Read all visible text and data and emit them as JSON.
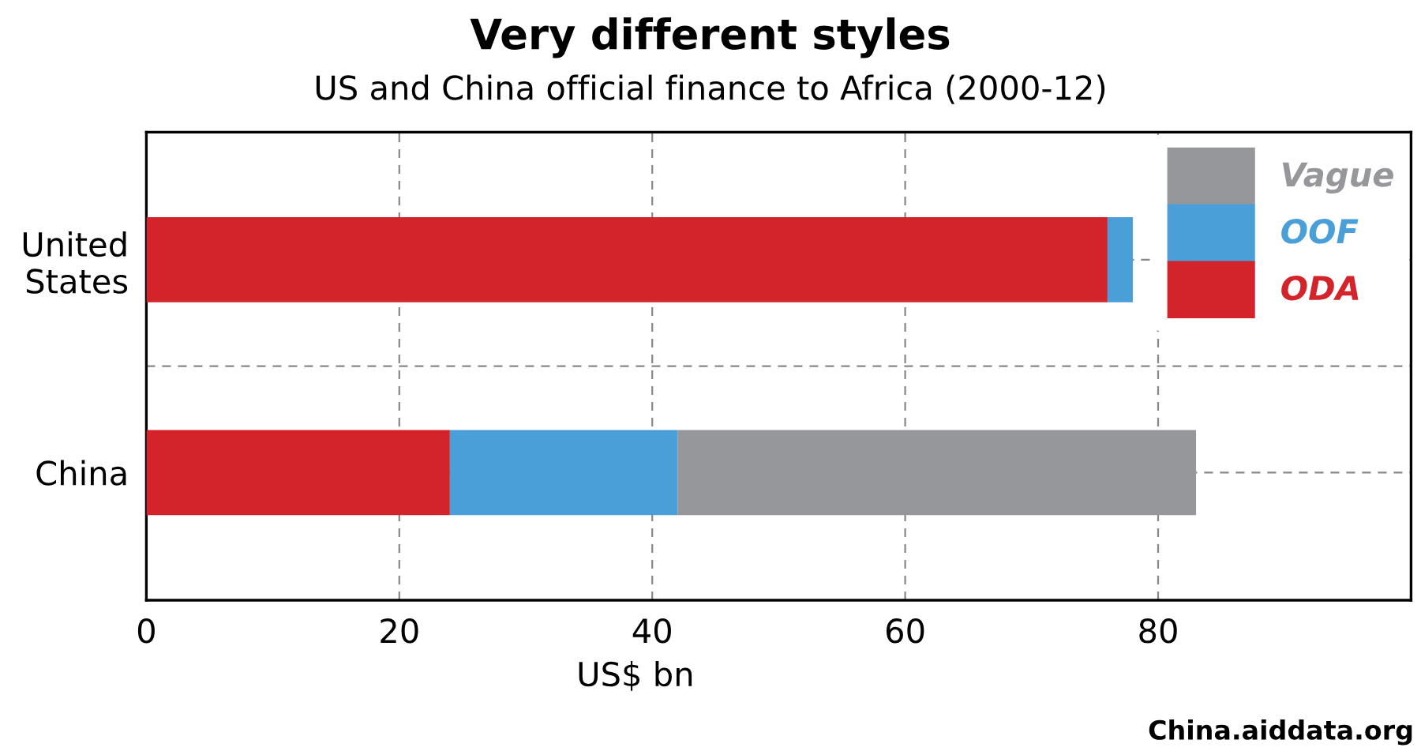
{
  "chart_data": {
    "type": "bar",
    "orientation": "horizontal",
    "stacked": true,
    "title": "Very different styles",
    "subtitle": "US and China official finance to Africa (2000-12)",
    "xlabel": "US$ bn",
    "categories": [
      "United\nStates",
      "China"
    ],
    "series": [
      {
        "name": "ODA",
        "color": "#d4242b",
        "values": [
          76,
          24
        ]
      },
      {
        "name": "OOF",
        "color": "#4a9fd8",
        "values": [
          2,
          18
        ]
      },
      {
        "name": "Vague",
        "color": "#96979b",
        "values": [
          null,
          41
        ]
      }
    ],
    "xlim": [
      0,
      100
    ],
    "xticks": [
      0,
      20,
      40,
      60,
      80
    ],
    "grid": true,
    "legend": "top right",
    "annotations": [
      "China.aiddata.org"
    ]
  }
}
